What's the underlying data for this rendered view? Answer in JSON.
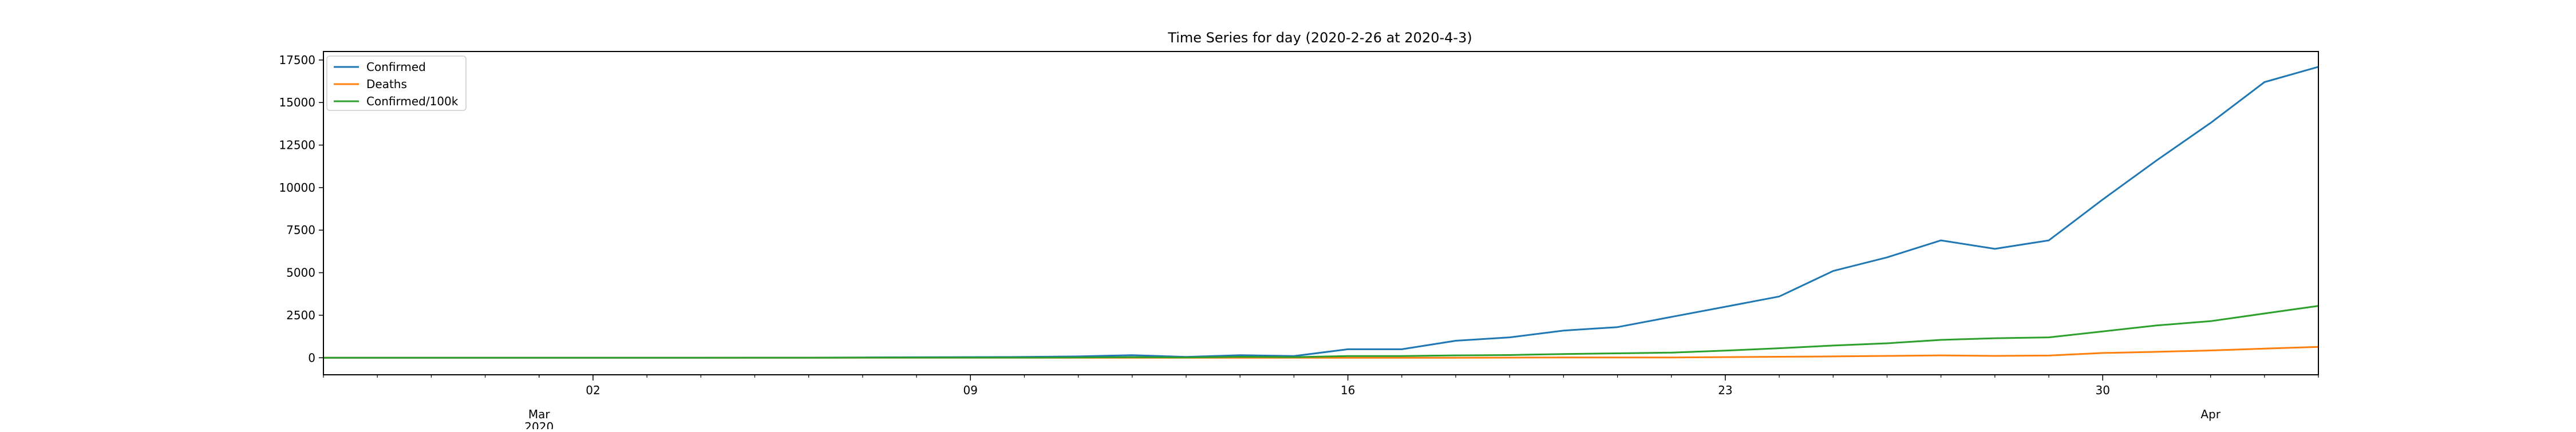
{
  "chart_data": {
    "type": "line",
    "title": "Time Series for day (2020-2-26 at 2020-4-3)",
    "xlabel": "",
    "ylabel": "",
    "x": [
      "2020-02-26",
      "2020-02-27",
      "2020-02-28",
      "2020-02-29",
      "2020-03-01",
      "2020-03-02",
      "2020-03-03",
      "2020-03-04",
      "2020-03-05",
      "2020-03-06",
      "2020-03-07",
      "2020-03-08",
      "2020-03-09",
      "2020-03-10",
      "2020-03-11",
      "2020-03-12",
      "2020-03-13",
      "2020-03-14",
      "2020-03-15",
      "2020-03-16",
      "2020-03-17",
      "2020-03-18",
      "2020-03-19",
      "2020-03-20",
      "2020-03-21",
      "2020-03-22",
      "2020-03-23",
      "2020-03-24",
      "2020-03-25",
      "2020-03-26",
      "2020-03-27",
      "2020-03-28",
      "2020-03-29",
      "2020-03-30",
      "2020-03-31",
      "2020-04-01",
      "2020-04-02",
      "2020-04-03"
    ],
    "xlim": [
      "2020-02-26",
      "2020-04-03"
    ],
    "ylim": [
      -1000,
      18000
    ],
    "y_ticks": [
      0,
      2500,
      5000,
      7500,
      10000,
      12500,
      15000,
      17500
    ],
    "y_tick_labels": [
      "0",
      "2500",
      "5000",
      "7500",
      "10000",
      "12500",
      "15000",
      "17500"
    ],
    "x_major_ticks": [
      {
        "date": "2020-03-02",
        "label": "02"
      },
      {
        "date": "2020-03-09",
        "label": "09"
      },
      {
        "date": "2020-03-16",
        "label": "16"
      },
      {
        "date": "2020-03-23",
        "label": "23"
      },
      {
        "date": "2020-03-30",
        "label": "30"
      }
    ],
    "x_month_labels": [
      {
        "date": "2020-03-01",
        "label": "Mar",
        "sublabel": "2020"
      },
      {
        "date": "2020-04-01",
        "label": "Apr",
        "sublabel": ""
      }
    ],
    "legend_position": "top-left",
    "grid": false,
    "series": [
      {
        "name": "Confirmed",
        "color": "#1f77b4",
        "values": [
          0,
          0,
          0,
          0,
          0,
          0,
          0,
          0,
          10,
          10,
          20,
          30,
          40,
          50,
          80,
          150,
          50,
          150,
          100,
          500,
          500,
          1000,
          1200,
          1600,
          1800,
          2400,
          3000,
          3600,
          5100,
          5900,
          6900,
          6400,
          6900,
          9300,
          11600,
          13800,
          16200,
          17100
        ]
      },
      {
        "name": "Deaths",
        "color": "#ff7f0e",
        "values": [
          0,
          0,
          0,
          0,
          0,
          0,
          0,
          0,
          0,
          0,
          0,
          0,
          0,
          0,
          0,
          0,
          0,
          0,
          0,
          0,
          0,
          0,
          10,
          20,
          20,
          20,
          40,
          60,
          80,
          110,
          140,
          110,
          130,
          280,
          350,
          430,
          540,
          640
        ]
      },
      {
        "name": "Confirmed/100k",
        "color": "#2ca02c",
        "values": [
          0,
          0,
          0,
          0,
          0,
          0,
          0,
          0,
          0,
          0,
          10,
          10,
          10,
          10,
          20,
          40,
          20,
          60,
          40,
          100,
          100,
          140,
          160,
          220,
          260,
          300,
          420,
          560,
          720,
          850,
          1050,
          1150,
          1200,
          1550,
          1900,
          2150,
          2600,
          3050
        ]
      }
    ]
  }
}
